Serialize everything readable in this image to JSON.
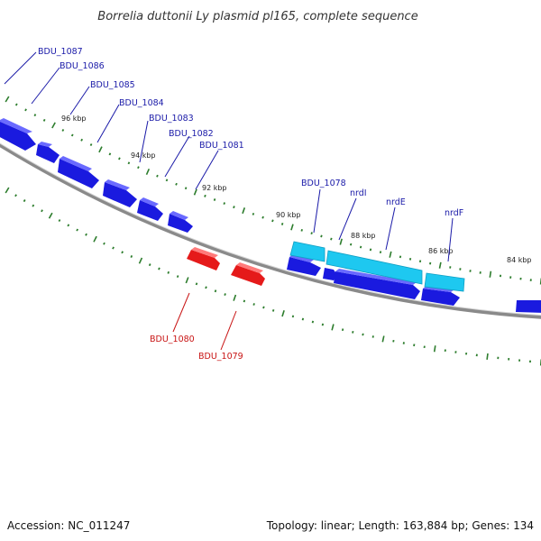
{
  "title": "Borrelia duttonii Ly plasmid pl165, complete sequence",
  "footer": {
    "accession": "Accession: NC_011247",
    "summary": "Topology: linear; Length: 163,884 bp; Genes: 134"
  },
  "colors": {
    "forward_gene": "#1a1adf",
    "reverse_gene": "#e51a1a",
    "highlight_gene": "#1ec8f0",
    "backbone": "#8a8a8a",
    "tick": "#2d7d2d",
    "forward_label": "#1a1aa8",
    "reverse_label": "#c81414"
  },
  "scale_labels": [
    "96 kbp",
    "94 kbp",
    "92 kbp",
    "90 kbp",
    "88 kbp",
    "86 kbp",
    "84 kbp"
  ],
  "gene_labels": {
    "forward": [
      "BDU_1087",
      "BDU_1086",
      "BDU_1085",
      "BDU_1084",
      "BDU_1083",
      "BDU_1082",
      "BDU_1081",
      "BDU_1078",
      "nrdI",
      "nrdE",
      "nrdF"
    ],
    "reverse": [
      "BDU_1080",
      "BDU_1079"
    ]
  }
}
